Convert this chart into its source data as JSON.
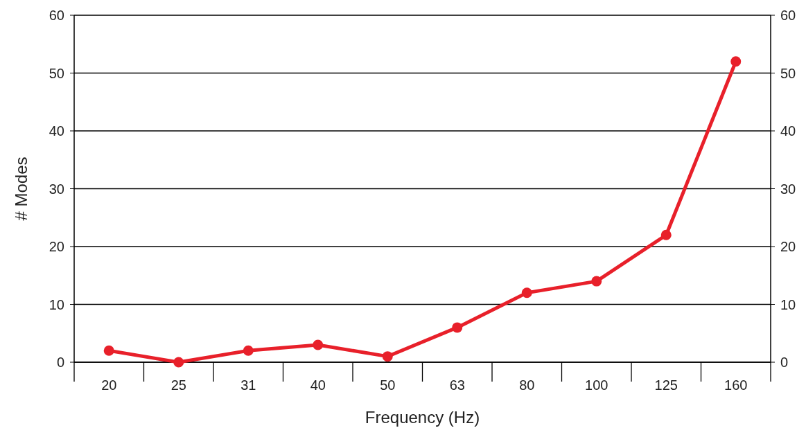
{
  "chart_data": {
    "type": "line",
    "xlabel": "Frequency (Hz)",
    "ylabel": "# Modes",
    "categories": [
      "20",
      "25",
      "31",
      "40",
      "50",
      "63",
      "80",
      "100",
      "125",
      "160"
    ],
    "series": [
      {
        "color": "#e8202a",
        "values": [
          2,
          0,
          2,
          3,
          1,
          6,
          12,
          14,
          22,
          52
        ]
      }
    ],
    "ylim": [
      0,
      60
    ],
    "yticks": [
      0,
      10,
      20,
      30,
      40,
      50,
      60
    ],
    "y2lim": [
      0,
      60
    ],
    "y2ticks": [
      0,
      10,
      20,
      30,
      40,
      50,
      60
    ],
    "grid": "y",
    "marker": "circle",
    "line_style": "solid"
  }
}
